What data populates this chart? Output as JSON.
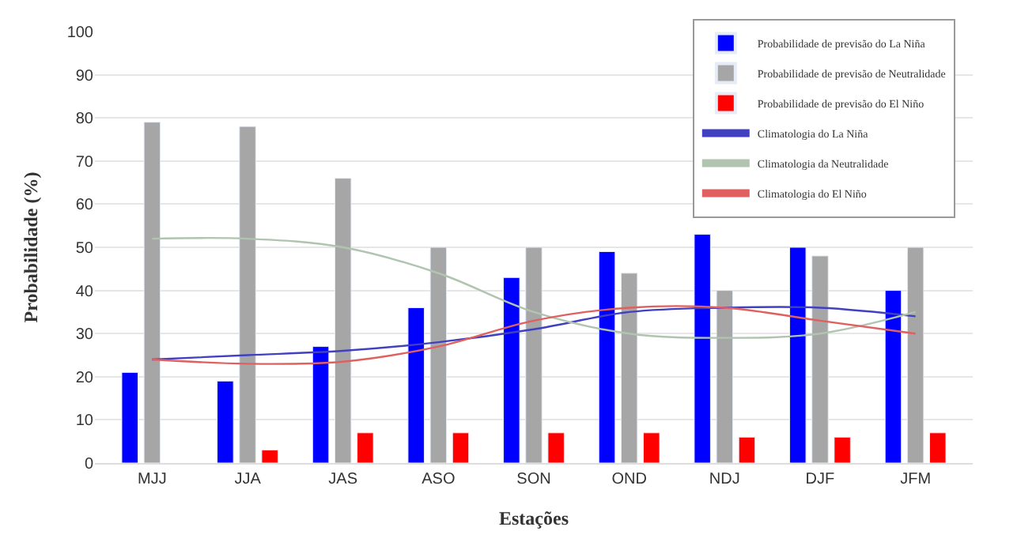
{
  "chart_data": {
    "type": "bar",
    "xlabel": "Estações",
    "ylabel": "Probabilidade (%)",
    "categories": [
      "MJJ",
      "JJA",
      "JAS",
      "ASO",
      "SON",
      "OND",
      "NDJ",
      "DJF",
      "JFM"
    ],
    "series": [
      {
        "name": "Probabilidade de previsão do La Niña",
        "color": "#0000ff",
        "values": [
          21,
          19,
          27,
          36,
          43,
          49,
          53,
          50,
          40
        ]
      },
      {
        "name": "Probabilidade de previsão de Neutralidade",
        "color": "#a6a6a6",
        "values": [
          79,
          78,
          66,
          50,
          50,
          44,
          40,
          48,
          50
        ]
      },
      {
        "name": "Probabilidade de previsão do El Niño",
        "color": "#ff0000",
        "values": [
          null,
          3,
          7,
          7,
          7,
          7,
          6,
          6,
          7
        ]
      },
      {
        "name": "Climatologia do La Niña",
        "type": "line",
        "color": "#4040c0",
        "values": [
          24,
          25,
          26,
          28,
          31,
          35,
          36,
          36,
          34
        ]
      },
      {
        "name": "Climatologia da Neutralidade",
        "type": "line",
        "color": "#b0c4b0",
        "values": [
          52,
          52,
          50,
          44,
          35,
          30,
          29,
          30,
          35
        ]
      },
      {
        "name": "Climatologia do El Niño",
        "type": "line",
        "color": "#e06060",
        "values": [
          24,
          23,
          23.5,
          27,
          33,
          36,
          36,
          33,
          30
        ]
      }
    ],
    "ylim": [
      0,
      100
    ],
    "yticks": [
      0,
      10,
      20,
      30,
      40,
      50,
      60,
      70,
      80,
      90,
      100
    ],
    "grid": "y",
    "legend": "top right"
  }
}
